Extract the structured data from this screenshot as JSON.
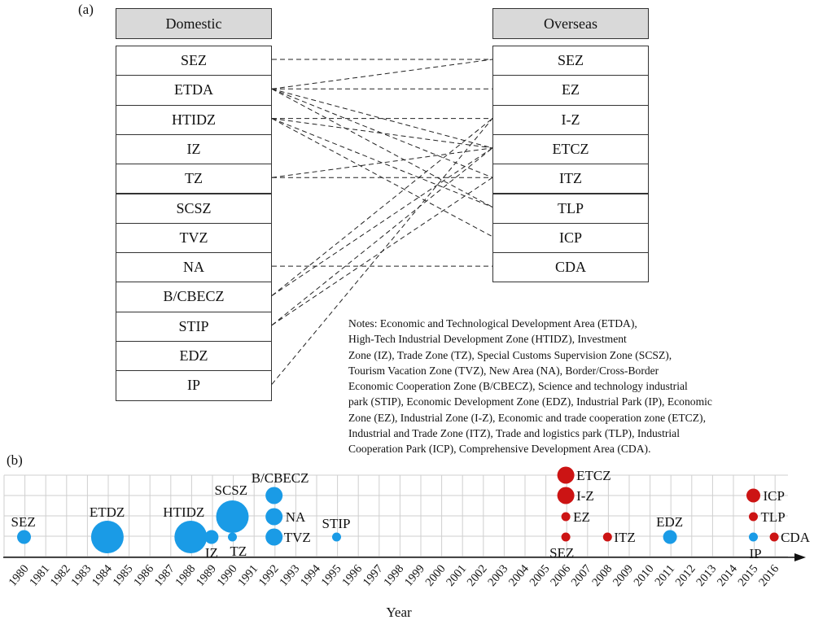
{
  "panel_a": {
    "label": "(a)",
    "domestic_header": "Domestic",
    "overseas_header": "Overseas",
    "domestic": [
      "SEZ",
      "ETDA",
      "HTIDZ",
      "IZ",
      "TZ",
      "SCSZ",
      "TVZ",
      "NA",
      "B/CBECZ",
      "STIP",
      "EDZ",
      "IP"
    ],
    "overseas": [
      "SEZ",
      "EZ",
      "I-Z",
      "ETCZ",
      "ITZ",
      "TLP",
      "ICP",
      "CDA"
    ],
    "links": [
      [
        "SEZ",
        "SEZ"
      ],
      [
        "ETDA",
        "SEZ"
      ],
      [
        "ETDA",
        "EZ"
      ],
      [
        "ETDA",
        "ETCZ"
      ],
      [
        "ETDA",
        "ITZ"
      ],
      [
        "ETDA",
        "TLP"
      ],
      [
        "HTIDZ",
        "I-Z"
      ],
      [
        "HTIDZ",
        "ETCZ"
      ],
      [
        "HTIDZ",
        "TLP"
      ],
      [
        "HTIDZ",
        "ICP"
      ],
      [
        "TZ",
        "ETCZ"
      ],
      [
        "TZ",
        "ITZ"
      ],
      [
        "NA",
        "CDA"
      ],
      [
        "B/CBECZ",
        "I-Z"
      ],
      [
        "B/CBECZ",
        "ETCZ"
      ],
      [
        "STIP",
        "ETCZ"
      ],
      [
        "STIP",
        "ITZ"
      ],
      [
        "IP",
        "I-Z"
      ]
    ],
    "notes": [
      "Notes: Economic and Technological Development Area  (ETDA),",
      "High-Tech Industrial Development Zone  (HTIDZ), Investment",
      "Zone (IZ), Trade Zone (TZ), Special Customs Supervision Zone (SCSZ),",
      "Tourism Vacation Zone (TVZ), New Area (NA), Border/Cross-Border",
      "Economic Cooperation Zone (B/CBECZ), Science and technology industrial",
      "park (STIP), Economic Development Zone (EDZ), Industrial Park (IP), Economic",
      "Zone (EZ), Industrial Zone (I-Z), Economic and trade cooperation zone (ETCZ),",
      "Industrial and Trade Zone (ITZ), Trade and logistics park (TLP), Industrial",
      "Cooperation Park (ICP), Comprehensive Development Area (CDA)."
    ]
  },
  "panel_b": {
    "label": "(b)",
    "xlabel": "Year",
    "years": [
      "1980",
      "1981",
      "1982",
      "1983",
      "1984",
      "1985",
      "1986",
      "1987",
      "1988",
      "1989",
      "1990",
      "1991",
      "1992",
      "1993",
      "1994",
      "1995",
      "1996",
      "1997",
      "1998",
      "1999",
      "2000",
      "2001",
      "2002",
      "2003",
      "2004",
      "2005",
      "2006",
      "2007",
      "2008",
      "2009",
      "2010",
      "2011",
      "2012",
      "2013",
      "2014",
      "2015",
      "2016"
    ],
    "colors": {
      "domestic": "#1a9be6",
      "overseas": "#cc1414"
    },
    "events": [
      {
        "label": "SEZ",
        "year": 1980,
        "level": 0,
        "size": "small",
        "type": "domestic"
      },
      {
        "label": "ETDZ",
        "year": 1984,
        "level": 0,
        "size": "large",
        "type": "domestic"
      },
      {
        "label": "HTIDZ",
        "year": 1988,
        "level": 0,
        "size": "large",
        "type": "domestic"
      },
      {
        "label": "IZ",
        "year": 1989,
        "level": 0,
        "size": "small",
        "type": "domestic"
      },
      {
        "label": "TZ",
        "year": 1990,
        "level": 0,
        "size": "tiny",
        "type": "domestic"
      },
      {
        "label": "SCSZ",
        "year": 1990,
        "level": 1,
        "size": "large",
        "type": "domestic"
      },
      {
        "label": "TVZ",
        "year": 1992,
        "level": 0,
        "size": "medium",
        "type": "domestic"
      },
      {
        "label": "NA",
        "year": 1992,
        "level": 1,
        "size": "medium",
        "type": "domestic"
      },
      {
        "label": "B/CBECZ",
        "year": 1992,
        "level": 2,
        "size": "medium",
        "type": "domestic"
      },
      {
        "label": "STIP",
        "year": 1995,
        "level": 0,
        "size": "tiny",
        "type": "domestic"
      },
      {
        "label": "SEZ",
        "year": 2006,
        "level": 0,
        "size": "tiny",
        "type": "overseas"
      },
      {
        "label": "EZ",
        "year": 2006,
        "level": 1,
        "size": "tiny",
        "type": "overseas"
      },
      {
        "label": "I-Z",
        "year": 2006,
        "level": 2,
        "size": "medium",
        "type": "overseas"
      },
      {
        "label": "ETCZ",
        "year": 2006,
        "level": 3,
        "size": "medium",
        "type": "overseas"
      },
      {
        "label": "ITZ",
        "year": 2008,
        "level": 0,
        "size": "tiny",
        "type": "overseas"
      },
      {
        "label": "EDZ",
        "year": 2011,
        "level": 0,
        "size": "small",
        "type": "domestic"
      },
      {
        "label": "IP",
        "year": 2015,
        "level": 0,
        "size": "tiny",
        "type": "domestic"
      },
      {
        "label": "TLP",
        "year": 2015,
        "level": 1,
        "size": "tiny",
        "type": "overseas"
      },
      {
        "label": "ICP",
        "year": 2015,
        "level": 2,
        "size": "small",
        "type": "overseas"
      },
      {
        "label": "CDA",
        "year": 2016,
        "level": 0,
        "size": "tiny",
        "type": "overseas"
      }
    ]
  }
}
